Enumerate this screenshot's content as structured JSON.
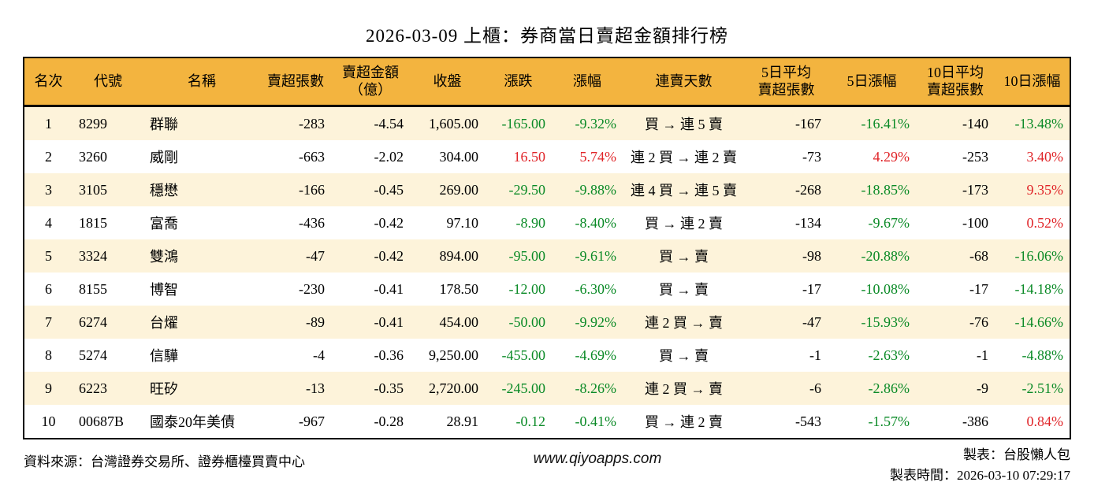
{
  "title": "2026-03-09 上櫃：券商當日賣超金額排行榜",
  "colors": {
    "header_bg": "#f3b43f",
    "row_alt_bg": "#fdf3da",
    "green_down": "#0a8a26",
    "red_up": "#e02428",
    "border": "#000000"
  },
  "table": {
    "headers": [
      "名次",
      "代號",
      "名稱",
      "賣超張數",
      "賣超金額\n（億）",
      "收盤",
      "漲跌",
      "漲幅",
      "連賣天數",
      "5日平均\n賣超張數",
      "5日漲幅",
      "10日平均\n賣超張數",
      "10日漲幅"
    ]
  },
  "chart_data": {
    "type": "table",
    "title": "2026-03-09 上櫃：券商當日賣超金額排行榜",
    "columns": [
      "名次",
      "代號",
      "名稱",
      "賣超張數",
      "賣超金額（億）",
      "收盤",
      "漲跌",
      "漲幅",
      "連賣天數",
      "5日平均賣超張數",
      "5日漲幅",
      "10日平均賣超張數",
      "10日漲幅"
    ],
    "rows": [
      [
        "1",
        "8299",
        "群聯",
        "-283",
        "-4.54",
        "1,605.00",
        {
          "t": "-165.00",
          "c": "green"
        },
        {
          "t": "-9.32%",
          "c": "green"
        },
        "買 → 連 5 賣",
        "-167",
        {
          "t": "-16.41%",
          "c": "green"
        },
        "-140",
        {
          "t": "-13.48%",
          "c": "green"
        }
      ],
      [
        "2",
        "3260",
        "威剛",
        "-663",
        "-2.02",
        "304.00",
        {
          "t": "16.50",
          "c": "red"
        },
        {
          "t": "5.74%",
          "c": "red"
        },
        "連 2 買 → 連 2 賣",
        "-73",
        {
          "t": "4.29%",
          "c": "red"
        },
        "-253",
        {
          "t": "3.40%",
          "c": "red"
        }
      ],
      [
        "3",
        "3105",
        "穩懋",
        "-166",
        "-0.45",
        "269.00",
        {
          "t": "-29.50",
          "c": "green"
        },
        {
          "t": "-9.88%",
          "c": "green"
        },
        "連 4 買 → 連 5 賣",
        "-268",
        {
          "t": "-18.85%",
          "c": "green"
        },
        "-173",
        {
          "t": "9.35%",
          "c": "red"
        }
      ],
      [
        "4",
        "1815",
        "富喬",
        "-436",
        "-0.42",
        "97.10",
        {
          "t": "-8.90",
          "c": "green"
        },
        {
          "t": "-8.40%",
          "c": "green"
        },
        "買 → 連 2 賣",
        "-134",
        {
          "t": "-9.67%",
          "c": "green"
        },
        "-100",
        {
          "t": "0.52%",
          "c": "red"
        }
      ],
      [
        "5",
        "3324",
        "雙鴻",
        "-47",
        "-0.42",
        "894.00",
        {
          "t": "-95.00",
          "c": "green"
        },
        {
          "t": "-9.61%",
          "c": "green"
        },
        "買 → 賣",
        "-98",
        {
          "t": "-20.88%",
          "c": "green"
        },
        "-68",
        {
          "t": "-16.06%",
          "c": "green"
        }
      ],
      [
        "6",
        "8155",
        "博智",
        "-230",
        "-0.41",
        "178.50",
        {
          "t": "-12.00",
          "c": "green"
        },
        {
          "t": "-6.30%",
          "c": "green"
        },
        "買 → 賣",
        "-17",
        {
          "t": "-10.08%",
          "c": "green"
        },
        "-17",
        {
          "t": "-14.18%",
          "c": "green"
        }
      ],
      [
        "7",
        "6274",
        "台燿",
        "-89",
        "-0.41",
        "454.00",
        {
          "t": "-50.00",
          "c": "green"
        },
        {
          "t": "-9.92%",
          "c": "green"
        },
        "連 2 買 → 賣",
        "-47",
        {
          "t": "-15.93%",
          "c": "green"
        },
        "-76",
        {
          "t": "-14.66%",
          "c": "green"
        }
      ],
      [
        "8",
        "5274",
        "信驊",
        "-4",
        "-0.36",
        "9,250.00",
        {
          "t": "-455.00",
          "c": "green"
        },
        {
          "t": "-4.69%",
          "c": "green"
        },
        "買 → 賣",
        "-1",
        {
          "t": "-2.63%",
          "c": "green"
        },
        "-1",
        {
          "t": "-4.88%",
          "c": "green"
        }
      ],
      [
        "9",
        "6223",
        "旺矽",
        "-13",
        "-0.35",
        "2,720.00",
        {
          "t": "-245.00",
          "c": "green"
        },
        {
          "t": "-8.26%",
          "c": "green"
        },
        "連 2 買 → 賣",
        "-6",
        {
          "t": "-2.86%",
          "c": "green"
        },
        "-9",
        {
          "t": "-2.51%",
          "c": "green"
        }
      ],
      [
        "10",
        "00687B",
        "國泰20年美債",
        "-967",
        "-0.28",
        "28.91",
        {
          "t": "-0.12",
          "c": "green"
        },
        {
          "t": "-0.41%",
          "c": "green"
        },
        "買 → 連 2 賣",
        "-543",
        {
          "t": "-1.57%",
          "c": "green"
        },
        "-386",
        {
          "t": "0.84%",
          "c": "red"
        }
      ]
    ]
  },
  "footer": {
    "source": "資料來源：台灣證券交易所、證券櫃檯買賣中心",
    "website": "www.qiyoapps.com",
    "maker": "製表：台股懶人包",
    "made_at": "製表時間：2026-03-10 07:29:17"
  }
}
